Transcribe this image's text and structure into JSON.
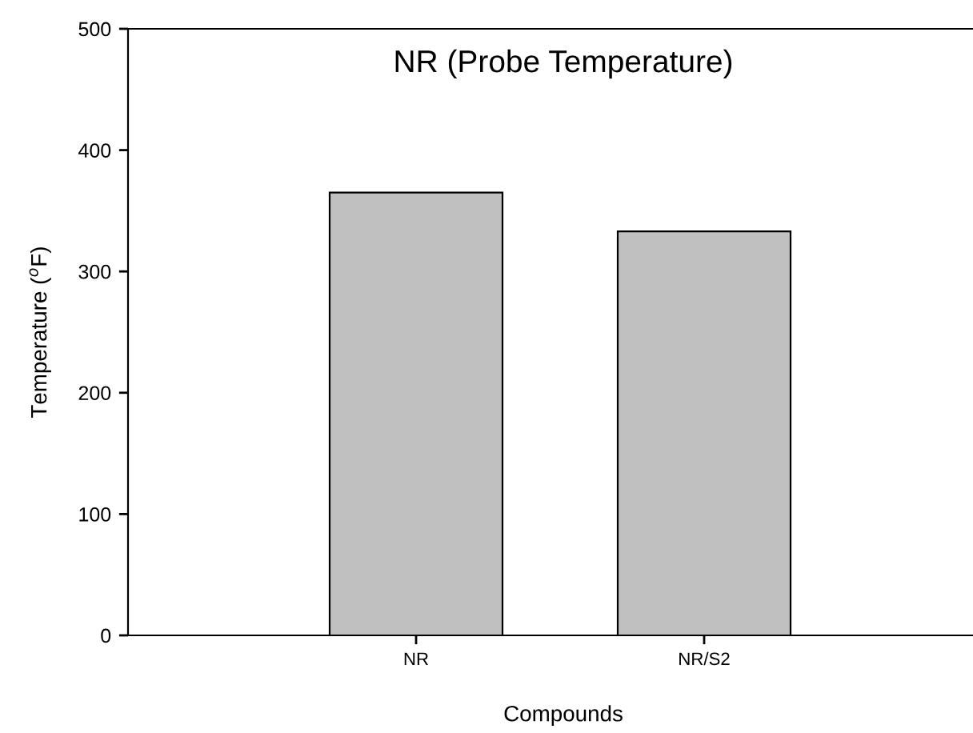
{
  "chart_data": {
    "type": "bar",
    "title": "NR (Probe Temperature)",
    "xlabel": "Compounds",
    "ylabel": "Temperature ($^{o}$F)",
    "categories": [
      "NR",
      "NR/S2"
    ],
    "values": [
      365,
      333
    ],
    "color": "#c0c0c0",
    "ylim": [
      0,
      500
    ],
    "yticks": [
      0,
      100,
      200,
      300,
      400,
      500
    ],
    "grid": false
  }
}
